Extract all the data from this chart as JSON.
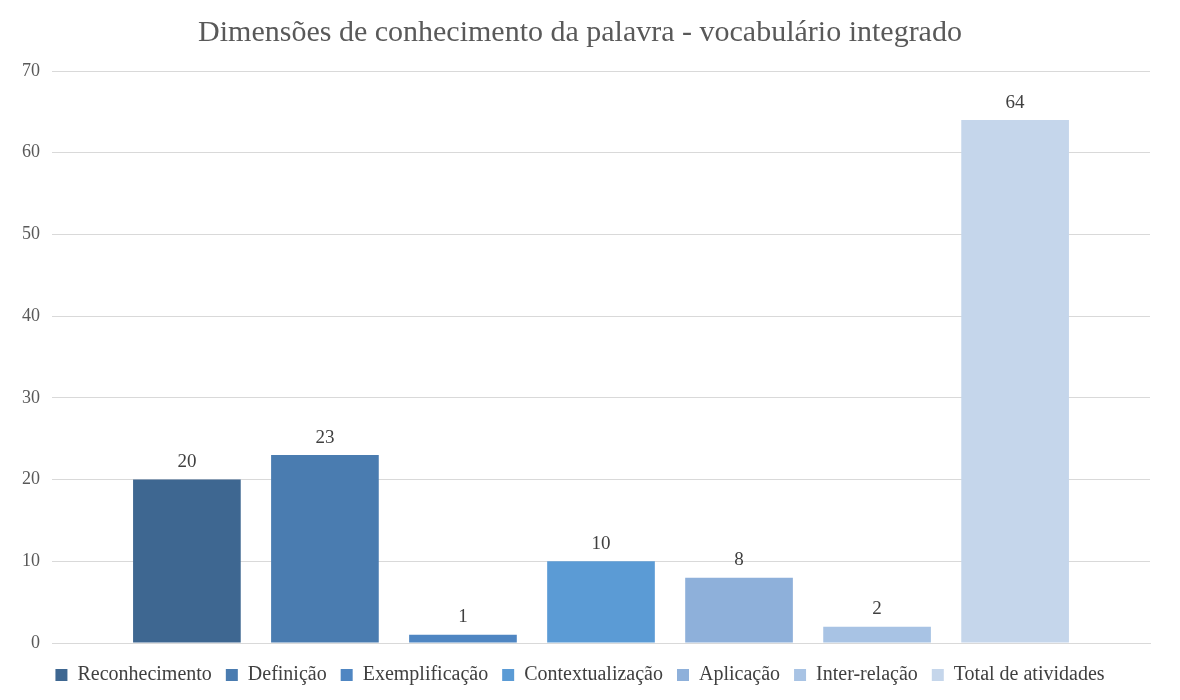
{
  "chart_data": {
    "type": "bar",
    "title": "Dimensões de conhecimento da palavra - vocabulário integrado",
    "categories": [
      null
    ],
    "series": [
      {
        "name": "Reconhecimento",
        "color": "#3e6791",
        "values": [
          20
        ]
      },
      {
        "name": "Definição",
        "color": "#4a7cb0",
        "values": [
          23
        ]
      },
      {
        "name": "Exemplificação",
        "color": "#4f86c2",
        "values": [
          1
        ]
      },
      {
        "name": "Contextualização",
        "color": "#5b9bd5",
        "values": [
          10
        ]
      },
      {
        "name": "Aplicação",
        "color": "#8eb0da",
        "values": [
          8
        ]
      },
      {
        "name": "Inter-relação",
        "color": "#a8c3e4",
        "values": [
          2
        ]
      },
      {
        "name": "Total de atividades",
        "color": "#c5d6eb",
        "values": [
          64
        ]
      }
    ],
    "ylim": [
      0,
      70
    ],
    "yticks": [
      0,
      10,
      20,
      30,
      40,
      50,
      60,
      70
    ],
    "grid": "y",
    "legend": "bottom",
    "data_labels": true
  }
}
